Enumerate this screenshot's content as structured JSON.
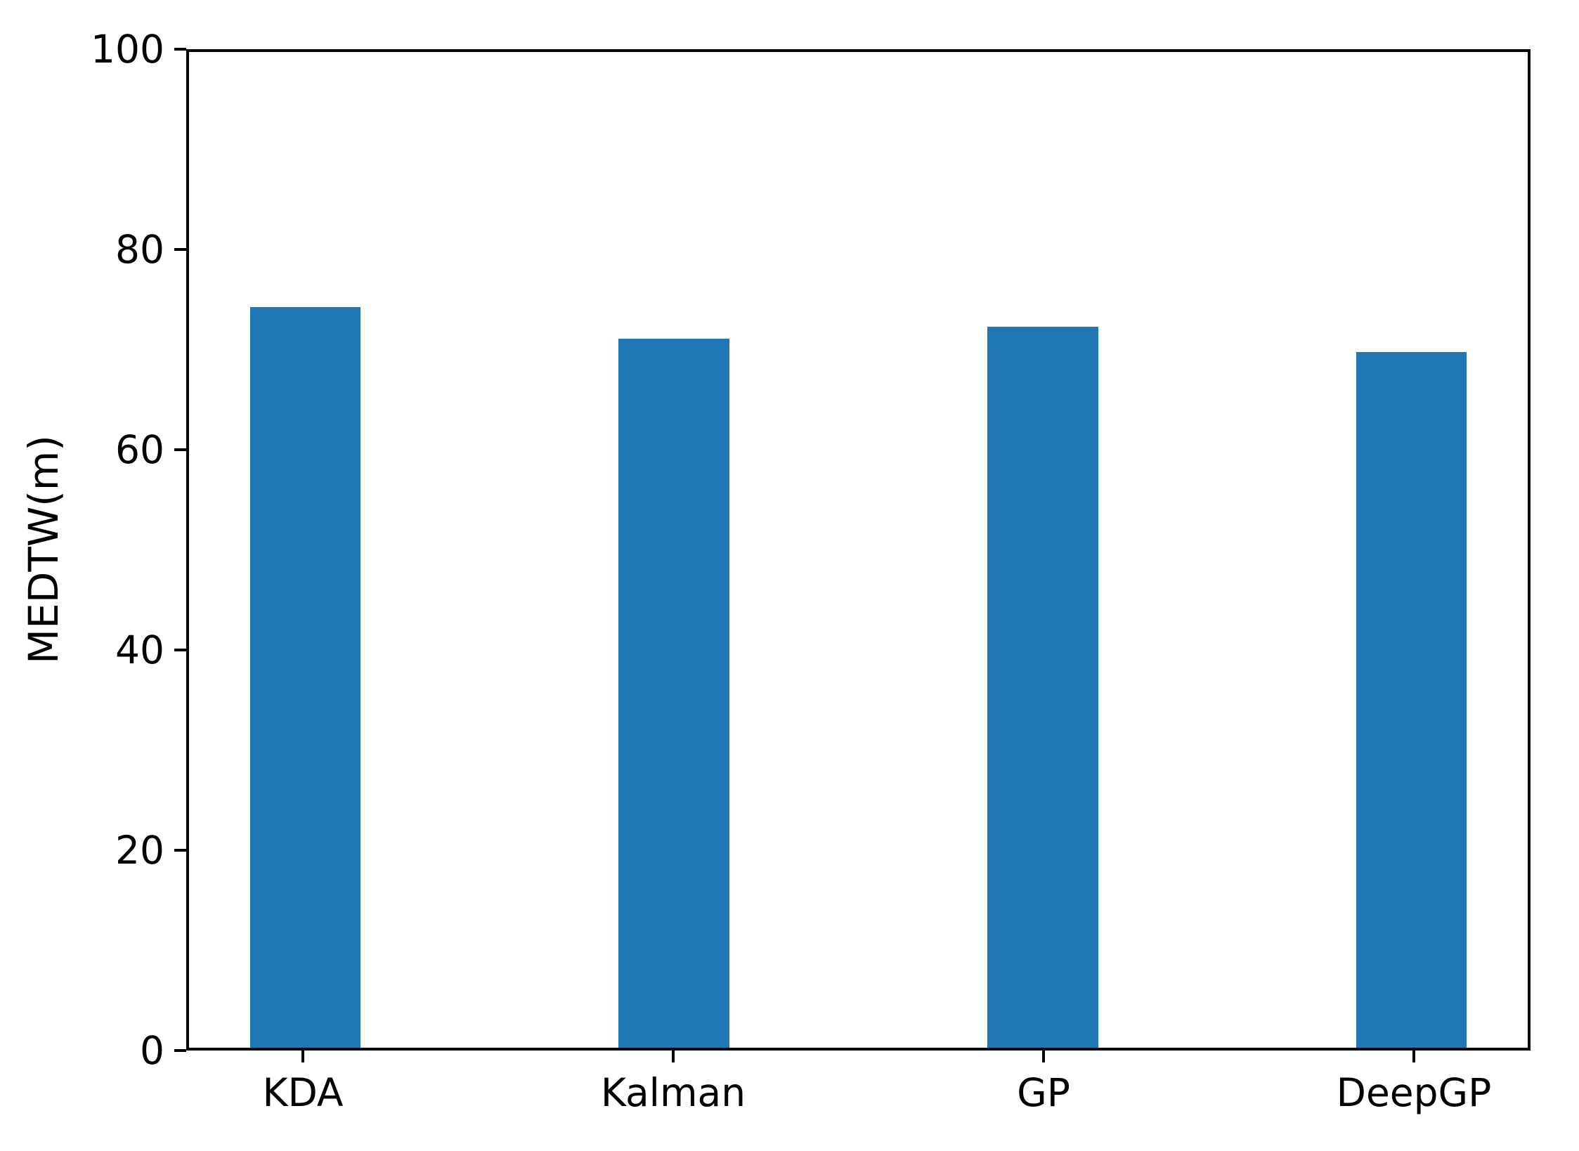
{
  "chart_data": {
    "type": "bar",
    "title": "",
    "categories": [
      "KDA",
      "Kalman",
      "GP",
      "DeepGP"
    ],
    "values": [
      74.4,
      71.2,
      72.4,
      69.9
    ],
    "xlabel": "",
    "ylabel": "MEDTW(m)",
    "ylim": [
      0,
      100
    ],
    "yticks": [
      0,
      20,
      40,
      60,
      80,
      100
    ],
    "xlim": [
      -0.315,
      3.315
    ],
    "bar_width_fraction": 0.3,
    "bar_color": "#1f77b4",
    "axis_color": "#000000",
    "background_color": "#ffffff",
    "grid": false,
    "legend": "none"
  }
}
